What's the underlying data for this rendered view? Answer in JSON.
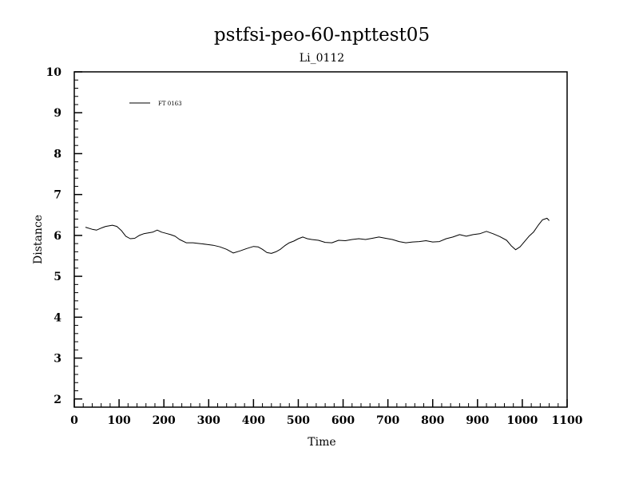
{
  "chart_data": {
    "type": "line",
    "title": "pstfsi-peo-60-npttest05",
    "subtitle": "Li_0112",
    "xlabel": "Time",
    "ylabel": "Distance",
    "xlim": [
      0,
      1100
    ],
    "ylim": [
      1.8,
      10
    ],
    "x_major_ticks": [
      0,
      100,
      200,
      300,
      400,
      500,
      600,
      700,
      800,
      900,
      1000,
      1100
    ],
    "y_major_ticks": [
      2,
      3,
      4,
      5,
      6,
      7,
      8,
      9,
      10
    ],
    "x_minor_step": 20,
    "y_minor_step": 0.2,
    "grid": false,
    "legend_position": "top-left",
    "series": [
      {
        "name": "FT 0163",
        "color": "#000000",
        "x": [
          25,
          40,
          50,
          60,
          70,
          85,
          95,
          105,
          115,
          125,
          135,
          145,
          155,
          165,
          175,
          185,
          195,
          205,
          215,
          225,
          235,
          250,
          265,
          280,
          295,
          310,
          325,
          340,
          355,
          370,
          385,
          400,
          410,
          420,
          430,
          440,
          450,
          460,
          470,
          480,
          490,
          500,
          510,
          520,
          530,
          545,
          560,
          575,
          590,
          605,
          620,
          635,
          650,
          665,
          680,
          695,
          710,
          725,
          740,
          755,
          770,
          785,
          800,
          815,
          830,
          845,
          860,
          875,
          890,
          905,
          920,
          935,
          950,
          965,
          975,
          985,
          995,
          1005,
          1015,
          1025,
          1035,
          1045,
          1055,
          1060
        ],
        "y": [
          6.2,
          6.15,
          6.13,
          6.18,
          6.22,
          6.25,
          6.22,
          6.12,
          5.98,
          5.92,
          5.93,
          6.0,
          6.04,
          6.06,
          6.08,
          6.13,
          6.08,
          6.05,
          6.02,
          5.98,
          5.9,
          5.82,
          5.82,
          5.8,
          5.78,
          5.76,
          5.72,
          5.66,
          5.57,
          5.62,
          5.68,
          5.73,
          5.72,
          5.66,
          5.58,
          5.56,
          5.6,
          5.66,
          5.75,
          5.82,
          5.86,
          5.92,
          5.96,
          5.92,
          5.9,
          5.88,
          5.83,
          5.82,
          5.88,
          5.87,
          5.9,
          5.92,
          5.9,
          5.93,
          5.96,
          5.93,
          5.9,
          5.85,
          5.82,
          5.84,
          5.85,
          5.87,
          5.84,
          5.85,
          5.92,
          5.96,
          6.02,
          5.98,
          6.02,
          6.04,
          6.1,
          6.04,
          5.97,
          5.88,
          5.75,
          5.65,
          5.72,
          5.85,
          5.98,
          6.08,
          6.24,
          6.38,
          6.42,
          6.36
        ]
      }
    ]
  }
}
